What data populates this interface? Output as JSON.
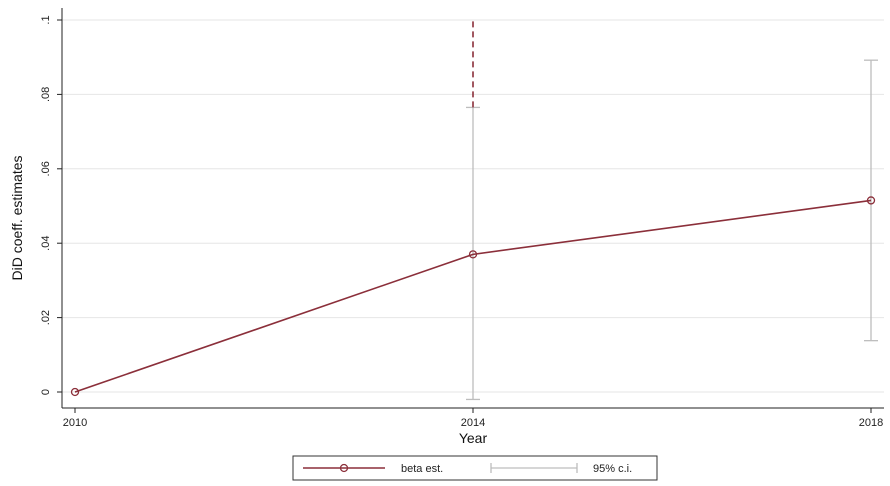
{
  "chart_data": {
    "type": "line",
    "title": "",
    "xlabel": "Year",
    "ylabel": "DiD coeff. estimates",
    "xlim": [
      2010,
      2018
    ],
    "ylim": [
      0,
      0.1
    ],
    "x_ticks": [
      2010,
      2014,
      2018
    ],
    "x_tick_labels": [
      "2010",
      "2014",
      "2018"
    ],
    "y_ticks": [
      0,
      0.02,
      0.04,
      0.06,
      0.08,
      0.1
    ],
    "y_tick_labels": [
      "0",
      ".02",
      ".04",
      ".06",
      ".08",
      ".1"
    ],
    "grid": true,
    "series": [
      {
        "name": "beta est.",
        "x": [
          2010,
          2014,
          2018
        ],
        "values": [
          0,
          0.037,
          0.0515
        ],
        "color": "#8b2f3a"
      }
    ],
    "confidence_intervals": {
      "name": "95% c.i.",
      "color": "#bdbdbd",
      "intervals": [
        {
          "x": 2014,
          "low": -0.002,
          "high": 0.0765
        },
        {
          "x": 2018,
          "low": 0.0138,
          "high": 0.0892
        }
      ]
    },
    "reference_line": {
      "x": 2014,
      "y_from": 0.0765,
      "y_to": 0.1,
      "style": "dashed",
      "color": "#8b2f3a"
    },
    "legend": {
      "position": "bottom",
      "entries": [
        "beta est.",
        "95% c.i."
      ]
    }
  }
}
